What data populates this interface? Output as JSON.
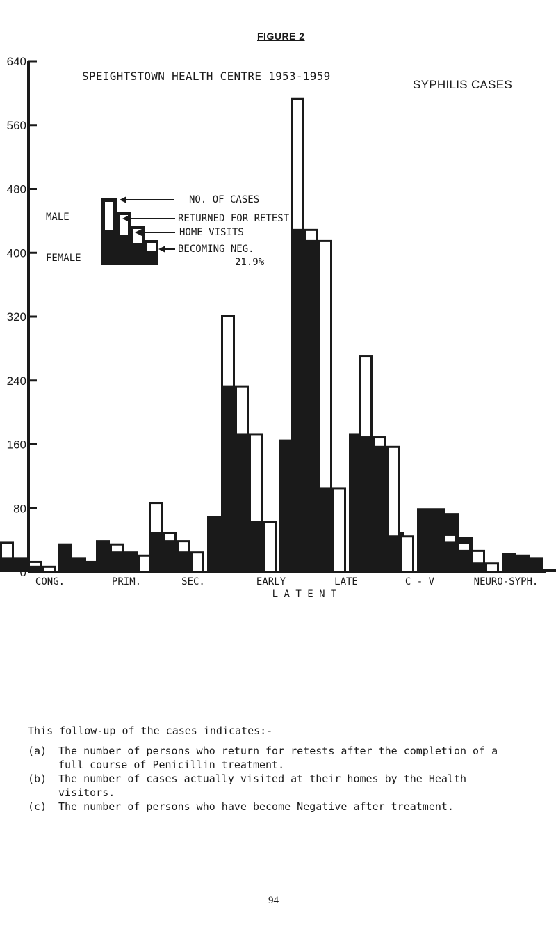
{
  "figure_label": "FIGURE 2",
  "chart_data": {
    "type": "bar",
    "title": "SPEIGHTSTOWN HEALTH CENTRE 1953-1959",
    "subtitle": "SYPHILIS CASES",
    "y_ticks": [
      "0",
      "80",
      "160",
      "240",
      "320",
      "400",
      "480",
      "560",
      "640"
    ],
    "ylim": [
      0,
      640
    ],
    "categories": [
      "CONG.",
      "PRIM.",
      "SEC.",
      "EARLY",
      "LATE",
      "C - V",
      "NEURO-SYPH."
    ],
    "latent_label": "L A T E N T",
    "groups": [
      {
        "category": "CONG.",
        "male": {
          "cases": 38,
          "returned": 18,
          "home_visits": 14,
          "negative": 8
        },
        "female": {
          "cases": 36,
          "returned": 18,
          "home_visits": 14,
          "negative": 6
        }
      },
      {
        "category": "PRIM.",
        "male": {
          "cases": 40,
          "returned": 36,
          "home_visits": 26,
          "negative": 22
        },
        "female": {
          "cases": 0,
          "returned": 0,
          "home_visits": 0,
          "negative": 0
        }
      },
      {
        "category": "SEC.",
        "male": {
          "cases": 88,
          "returned": 50,
          "home_visits": 40,
          "negative": 26
        },
        "female": {
          "cases": 70,
          "returned": 48,
          "home_visits": 38,
          "negative": 24
        }
      },
      {
        "category": "EARLY",
        "male": {
          "cases": 322,
          "returned": 234,
          "home_visits": 174,
          "negative": 64
        },
        "female": {
          "cases": 166,
          "returned": 150,
          "home_visits": 134,
          "negative": 60
        }
      },
      {
        "category": "LATE",
        "male": {
          "cases": 594,
          "returned": 430,
          "home_visits": 416,
          "negative": 106
        },
        "female": {
          "cases": 174,
          "returned": 164,
          "home_visits": 156,
          "negative": 50
        }
      },
      {
        "category": "C - V",
        "male": {
          "cases": 272,
          "returned": 170,
          "home_visits": 158,
          "negative": 46
        },
        "female": {
          "cases": 80,
          "returned": 80,
          "home_visits": 74,
          "negative": 44
        }
      },
      {
        "category": "NEURO-SYPH.",
        "male": {
          "cases": 48,
          "returned": 38,
          "home_visits": 28,
          "negative": 12
        },
        "female": {
          "cases": 24,
          "returned": 22,
          "home_visits": 18,
          "negative": 4
        }
      }
    ],
    "legend": {
      "male_label": "MALE",
      "female_label": "FEMALE",
      "items": [
        "NO. OF CASES",
        "RETURNED FOR RETEST",
        "HOME VISITS",
        "BECOMING NEG."
      ],
      "note": "21.9%"
    },
    "legend_position": "upper-left",
    "grid": false,
    "bar_color": "#1a1a1a",
    "background_color": "#ffffff"
  },
  "notes": {
    "intro": "This follow-up of the cases indicates:-",
    "items": [
      {
        "key": "(a)",
        "text": "The number of persons who return for retests after the completion of a full course of Penicillin treatment."
      },
      {
        "key": "(b)",
        "text": "The number of cases actually visited at their homes by the Health visitors."
      },
      {
        "key": "(c)",
        "text": "The number of persons who have become Negative after treatment."
      }
    ]
  },
  "page_number": "94"
}
